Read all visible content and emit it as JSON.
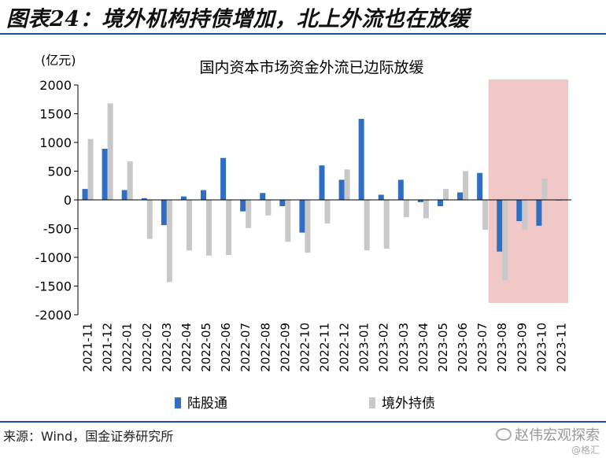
{
  "figure": {
    "title": "图表24：境外机构持债增加，北上外流也在放缓",
    "source": "来源：Wind，国金证券研究所",
    "watermark": "赵伟宏观探索",
    "watermark_sub": "@格汇"
  },
  "chart_data": {
    "type": "bar",
    "title": "国内资本市场资金外流已边际放缓",
    "ylabel": "(亿元)",
    "ylim": [
      -2000,
      2000
    ],
    "yticks": [
      2000,
      1500,
      1000,
      500,
      0,
      -500,
      -1000,
      -1500,
      -2000
    ],
    "categories": [
      "2021-11",
      "2021-12",
      "2022-01",
      "2022-02",
      "2022-03",
      "2022-04",
      "2022-05",
      "2022-06",
      "2022-07",
      "2022-08",
      "2022-09",
      "2022-10",
      "2022-11",
      "2022-12",
      "2023-01",
      "2023-02",
      "2023-03",
      "2023-04",
      "2023-05",
      "2023-06",
      "2023-07",
      "2023-08",
      "2023-09",
      "2023-10",
      "2023-11"
    ],
    "series": [
      {
        "name": "陆股通",
        "color": "#2f6ec2",
        "values": [
          190,
          890,
          170,
          30,
          -440,
          60,
          170,
          730,
          -200,
          120,
          -110,
          -570,
          600,
          350,
          1410,
          90,
          350,
          -40,
          -110,
          130,
          470,
          -900,
          -370,
          -450,
          -10
        ]
      },
      {
        "name": "境外持债",
        "color": "#c8c8c8",
        "values": [
          1060,
          1680,
          670,
          -680,
          -1430,
          -880,
          -970,
          -960,
          -490,
          -270,
          -730,
          -920,
          -410,
          530,
          -880,
          -850,
          -300,
          -320,
          190,
          500,
          -520,
          -1400,
          -520,
          370,
          0
        ]
      }
    ],
    "highlight": {
      "from": "2023-08",
      "to": "2023-11",
      "color": "#f0c8c8"
    },
    "legend": "bottom"
  }
}
